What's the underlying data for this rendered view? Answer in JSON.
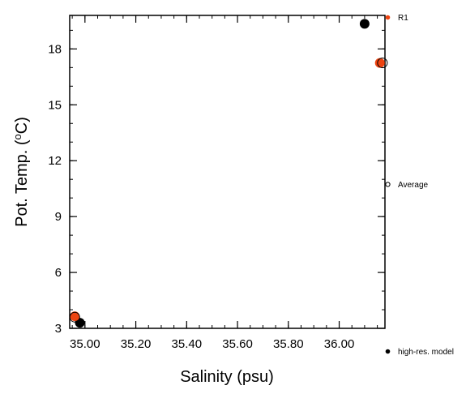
{
  "chart_data": {
    "type": "scatter",
    "xlabel": "Salinity (psu)",
    "ylabel_parts": [
      "Pot. Temp. (",
      "o",
      "C)"
    ],
    "xlim": [
      34.94,
      36.18
    ],
    "ylim": [
      3.0,
      19.8
    ],
    "x_ticks": [
      35.0,
      35.2,
      35.4,
      35.6,
      35.8,
      36.0
    ],
    "x_tick_labels": [
      "35.00",
      "35.20",
      "35.40",
      "35.60",
      "35.80",
      "36.00"
    ],
    "y_ticks": [
      3,
      6,
      9,
      12,
      15,
      18
    ],
    "y_tick_labels": [
      "3",
      "6",
      "9",
      "12",
      "15",
      "18"
    ],
    "grid": false,
    "series": [
      {
        "name": "high-res. model",
        "marker": "filled-circle",
        "color": "#000000",
        "points": [
          {
            "x": 36.1,
            "y": 19.35
          },
          {
            "x": 34.98,
            "y": 3.3
          }
        ]
      },
      {
        "name": "R1",
        "marker": "filled-circle",
        "color": "#ee4411",
        "points": [
          {
            "x": 36.16,
            "y": 17.25
          },
          {
            "x": 34.96,
            "y": 3.65
          }
        ]
      },
      {
        "name": "Average",
        "marker": "open-circle",
        "color": "#000000",
        "points": [
          {
            "x": 36.17,
            "y": 17.25
          },
          {
            "x": 34.96,
            "y": 3.6
          }
        ]
      }
    ],
    "legend_placement": "right"
  }
}
